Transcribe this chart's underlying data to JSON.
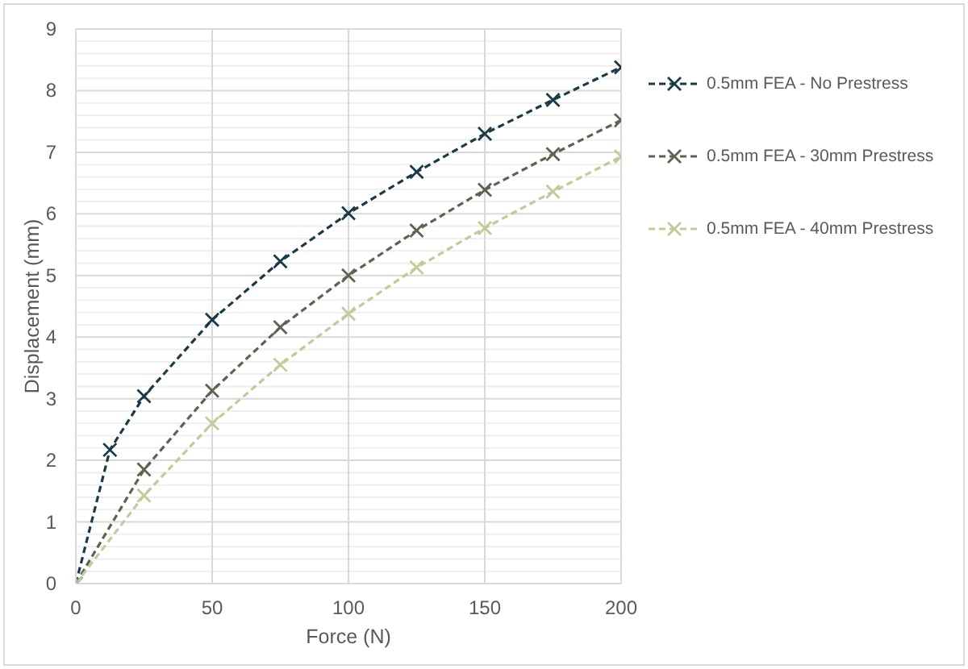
{
  "chart_data": {
    "type": "line",
    "xlabel": "Force (N)",
    "ylabel": "Displacement (mm)",
    "xlim": [
      0,
      200
    ],
    "xticks": [
      0,
      50,
      100,
      150,
      200
    ],
    "ylim": [
      0,
      9
    ],
    "yticks": [
      0,
      {
        "value": 0.2,
        "label": null
      },
      {
        "value": 0.4,
        "label": null
      },
      {
        "value": 0.6,
        "label": null
      },
      {
        "value": 0.8,
        "label": null
      },
      1,
      {
        "value": 1.2,
        "label": null
      },
      {
        "value": 1.4,
        "label": null
      },
      {
        "value": 1.6,
        "label": null
      },
      {
        "value": 1.8,
        "label": null
      },
      2,
      {
        "value": 2.2,
        "label": null
      },
      {
        "value": 2.4,
        "label": null
      },
      {
        "value": 2.6,
        "label": null
      },
      {
        "value": 2.8,
        "label": null
      },
      3,
      {
        "value": 3.2,
        "label": null
      },
      {
        "value": 3.4,
        "label": null
      },
      {
        "value": 3.6,
        "label": null
      },
      {
        "value": 3.8,
        "label": null
      },
      4,
      {
        "value": 4.2,
        "label": null
      },
      {
        "value": 4.4,
        "label": null
      },
      {
        "value": 4.6,
        "label": null
      },
      {
        "value": 4.8,
        "label": null
      },
      5,
      {
        "value": 5.2,
        "label": null
      },
      {
        "value": 5.4,
        "label": null
      },
      {
        "value": 5.6,
        "label": null
      },
      {
        "value": 5.8,
        "label": null
      },
      6,
      {
        "value": 6.2,
        "label": null
      },
      {
        "value": 6.4,
        "label": null
      },
      {
        "value": 6.6,
        "label": null
      },
      {
        "value": 6.8,
        "label": null
      },
      7,
      {
        "value": 7.2,
        "label": null
      },
      {
        "value": 7.4,
        "label": null
      },
      {
        "value": 7.6,
        "label": null
      },
      {
        "value": 7.8,
        "label": null
      },
      8,
      {
        "value": 8.2,
        "label": null
      },
      {
        "value": 8.4,
        "label": null
      },
      {
        "value": 8.6,
        "label": null
      },
      {
        "value": 8.8,
        "label": null
      },
      9
    ],
    "grid": true,
    "legend": "top right",
    "marker": "cross",
    "line_style": "dashed",
    "series": [
      {
        "name": "0.5mm FEA - No Prestress",
        "color": "#1b3a47",
        "x": [
          0,
          12.5,
          25,
          50,
          75,
          100,
          125,
          150,
          175,
          200
        ],
        "values": [
          0,
          2.17,
          3.04,
          4.28,
          5.23,
          6.01,
          6.68,
          7.3,
          7.85,
          8.38
        ]
      },
      {
        "name": "0.5mm FEA - 30mm Prestress",
        "color": "#5c6450",
        "x": [
          0,
          25,
          50,
          75,
          100,
          125,
          150,
          175,
          200
        ],
        "values": [
          0,
          1.85,
          3.13,
          4.16,
          5.0,
          5.73,
          6.39,
          6.97,
          7.52
        ]
      },
      {
        "name": "0.5mm FEA - 40mm Prestress",
        "color": "#c2cb98",
        "x": [
          0,
          25,
          50,
          75,
          100,
          125,
          150,
          175,
          200
        ],
        "values": [
          0,
          1.43,
          2.6,
          3.55,
          4.38,
          5.13,
          5.77,
          6.36,
          6.93
        ]
      }
    ]
  }
}
